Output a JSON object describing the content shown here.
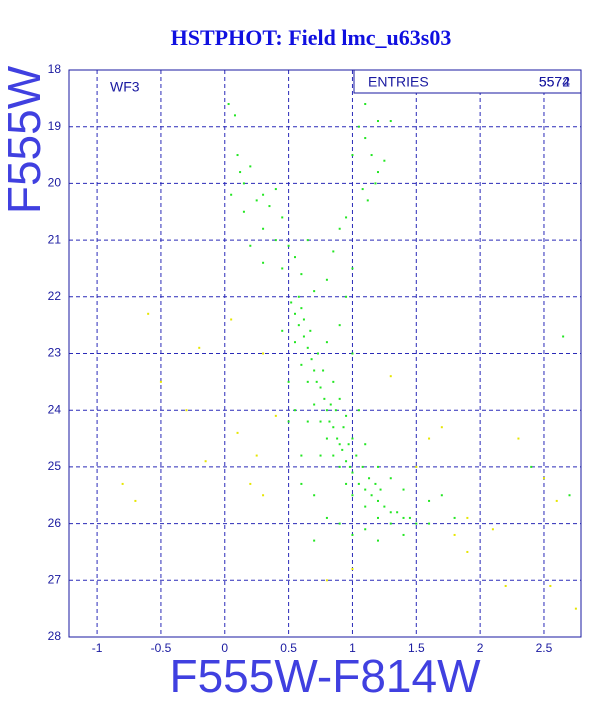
{
  "chart_data": {
    "type": "scatter",
    "title": "HSTPHOT: Field lmc_u63s03",
    "x_label": "F555W-F814W",
    "y_label": "F555W",
    "annotation": "WF3",
    "stats_label": "ENTRIES",
    "entries": [
      "5574",
      "5572"
    ],
    "xlim": [
      -1.22,
      2.79
    ],
    "ylim": [
      28,
      18
    ],
    "xticks": [
      -1,
      -0.5,
      0,
      0.5,
      1,
      1.5,
      2,
      2.5
    ],
    "yticks": [
      18,
      19,
      20,
      21,
      22,
      23,
      24,
      25,
      26,
      27,
      28
    ],
    "grid": true,
    "series": [
      {
        "color": "#22e622",
        "x": [
          0.03,
          0.08,
          0.1,
          0.12,
          0.15,
          0.2,
          0.05,
          0.25,
          0.3,
          0.35,
          0.4,
          0.45,
          0.15,
          0.3,
          0.4,
          0.5,
          0.55,
          0.45,
          0.6,
          0.65,
          0.3,
          0.2,
          0.7,
          1.05,
          1.1,
          1.15,
          1.2,
          1.0,
          1.08,
          1.12,
          0.95,
          1.2,
          1.3,
          1.1,
          1.18,
          1.25,
          0.9,
          1.0,
          0.85,
          0.95,
          0.8,
          0.52,
          0.55,
          0.58,
          0.6,
          0.62,
          0.65,
          0.55,
          0.68,
          0.7,
          0.6,
          0.72,
          0.75,
          0.65,
          0.78,
          0.8,
          0.7,
          0.82,
          0.85,
          0.75,
          0.88,
          0.9,
          0.8,
          0.92,
          0.95,
          0.85,
          0.98,
          1.0,
          0.9,
          1.05,
          1.1,
          0.95,
          1.15,
          1.2,
          1.0,
          1.25,
          1.3,
          1.1,
          1.35,
          1.4,
          1.2,
          1.45,
          1.5,
          1.3,
          1.6,
          1.1,
          0.9,
          1.0,
          0.8,
          0.7,
          0.6,
          0.5,
          0.55,
          0.65,
          0.75,
          1.0,
          1.1,
          1.2,
          1.3,
          1.4,
          0.85,
          0.9,
          0.95,
          1.05,
          0.8,
          0.9,
          1.0,
          0.45,
          0.5,
          0.6,
          1.6,
          1.7,
          1.8,
          0.7,
          1.2,
          1.4,
          0.58,
          0.62,
          0.67,
          0.73,
          0.77,
          0.83,
          0.87,
          0.93,
          0.97,
          1.03,
          1.08,
          1.13,
          1.18,
          1.22,
          2.7,
          2.65,
          2.4
        ],
        "values": [
          18.6,
          18.8,
          19.5,
          19.8,
          20.0,
          19.7,
          20.2,
          20.3,
          20.2,
          20.4,
          20.1,
          20.6,
          20.5,
          20.8,
          21.0,
          21.1,
          21.3,
          21.5,
          21.6,
          21.0,
          21.4,
          21.1,
          21.9,
          19.0,
          19.2,
          19.5,
          19.8,
          19.5,
          20.1,
          20.3,
          20.6,
          18.9,
          18.9,
          18.6,
          20.0,
          19.6,
          20.8,
          21.5,
          21.2,
          22.0,
          21.7,
          22.1,
          22.3,
          22.5,
          22.2,
          22.7,
          22.9,
          22.8,
          23.1,
          23.3,
          23.2,
          23.5,
          23.6,
          23.5,
          23.8,
          24.0,
          23.9,
          24.2,
          24.3,
          24.2,
          24.5,
          24.6,
          24.5,
          24.7,
          24.9,
          24.8,
          25.0,
          25.1,
          25.0,
          25.3,
          25.4,
          25.3,
          25.5,
          25.6,
          25.5,
          25.7,
          25.8,
          25.7,
          25.8,
          25.9,
          25.9,
          25.9,
          26.0,
          26.0,
          26.0,
          26.1,
          26.0,
          26.2,
          25.9,
          25.5,
          24.8,
          23.5,
          24.0,
          24.2,
          24.8,
          24.5,
          24.6,
          25.0,
          25.2,
          25.4,
          23.5,
          23.8,
          24.1,
          24.0,
          22.8,
          22.5,
          23.0,
          22.6,
          24.2,
          25.3,
          25.6,
          25.5,
          25.9,
          26.3,
          26.3,
          26.2,
          22.0,
          22.4,
          22.6,
          23.0,
          23.3,
          23.9,
          24.0,
          24.3,
          24.6,
          24.8,
          25.0,
          25.2,
          25.3,
          25.4,
          25.5,
          22.7,
          25.0
        ]
      },
      {
        "color": "#e6e600",
        "x": [
          -0.6,
          -0.2,
          0.3,
          -0.5,
          -0.3,
          0.1,
          0.25,
          -0.8,
          -0.7,
          0.3,
          1.9,
          2.1,
          2.2,
          2.55,
          2.75,
          0.8,
          1.0,
          1.8,
          2.3,
          1.7,
          1.3,
          1.6,
          2.5,
          0.2,
          -0.15,
          0.4,
          1.5,
          1.9,
          2.6,
          0.05
        ],
        "values": [
          22.3,
          22.9,
          23.0,
          23.5,
          24.0,
          24.4,
          24.8,
          25.3,
          25.6,
          25.5,
          25.9,
          26.1,
          27.1,
          27.1,
          27.5,
          27.0,
          26.8,
          26.2,
          24.5,
          24.3,
          23.4,
          24.5,
          25.2,
          25.3,
          24.9,
          24.1,
          25.0,
          26.5,
          25.6,
          22.4
        ]
      }
    ]
  }
}
